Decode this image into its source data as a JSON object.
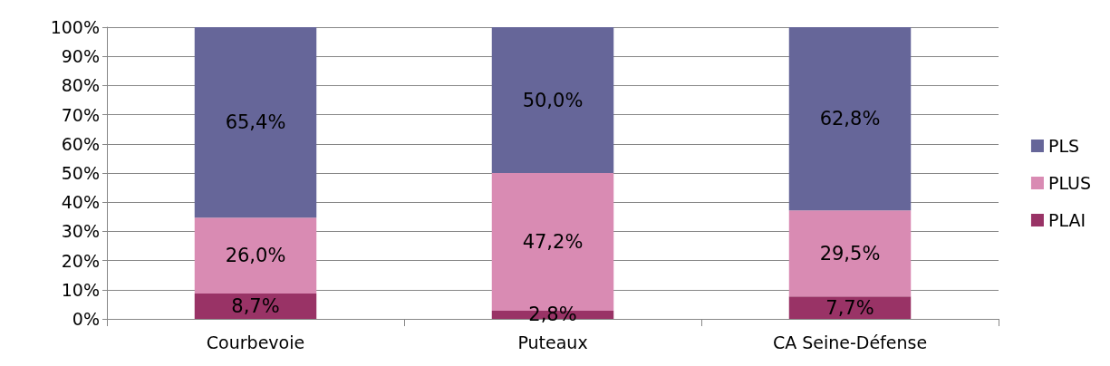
{
  "chart_data": {
    "type": "bar",
    "stacked": true,
    "categories": [
      "Courbevoie",
      "Puteaux",
      "CA Seine-Défense"
    ],
    "series": [
      {
        "name": "PLAI",
        "color": "#993366",
        "values": [
          8.7,
          2.8,
          7.7
        ],
        "value_labels": [
          "8,7%",
          "2,8%",
          "7,7%"
        ]
      },
      {
        "name": "PLUS",
        "color": "#d98bb3",
        "values": [
          26.0,
          47.2,
          29.5
        ],
        "value_labels": [
          "26,0%",
          "47,2%",
          "29,5%"
        ]
      },
      {
        "name": "PLS",
        "color": "#666699",
        "values": [
          65.4,
          50.0,
          62.8
        ],
        "value_labels": [
          "65,4%",
          "50,0%",
          "62,8%"
        ]
      }
    ],
    "ylim": [
      0,
      100
    ],
    "yticks": [
      {
        "value": 0,
        "label": "0%"
      },
      {
        "value": 10,
        "label": "10%"
      },
      {
        "value": 20,
        "label": "20%"
      },
      {
        "value": 30,
        "label": "30%"
      },
      {
        "value": 40,
        "label": "40%"
      },
      {
        "value": 50,
        "label": "50%"
      },
      {
        "value": 60,
        "label": "60%"
      },
      {
        "value": 70,
        "label": "70%"
      },
      {
        "value": 80,
        "label": "80%"
      },
      {
        "value": 90,
        "label": "90%"
      },
      {
        "value": 100,
        "label": "100%"
      }
    ],
    "grid": "y",
    "legend": "right"
  }
}
